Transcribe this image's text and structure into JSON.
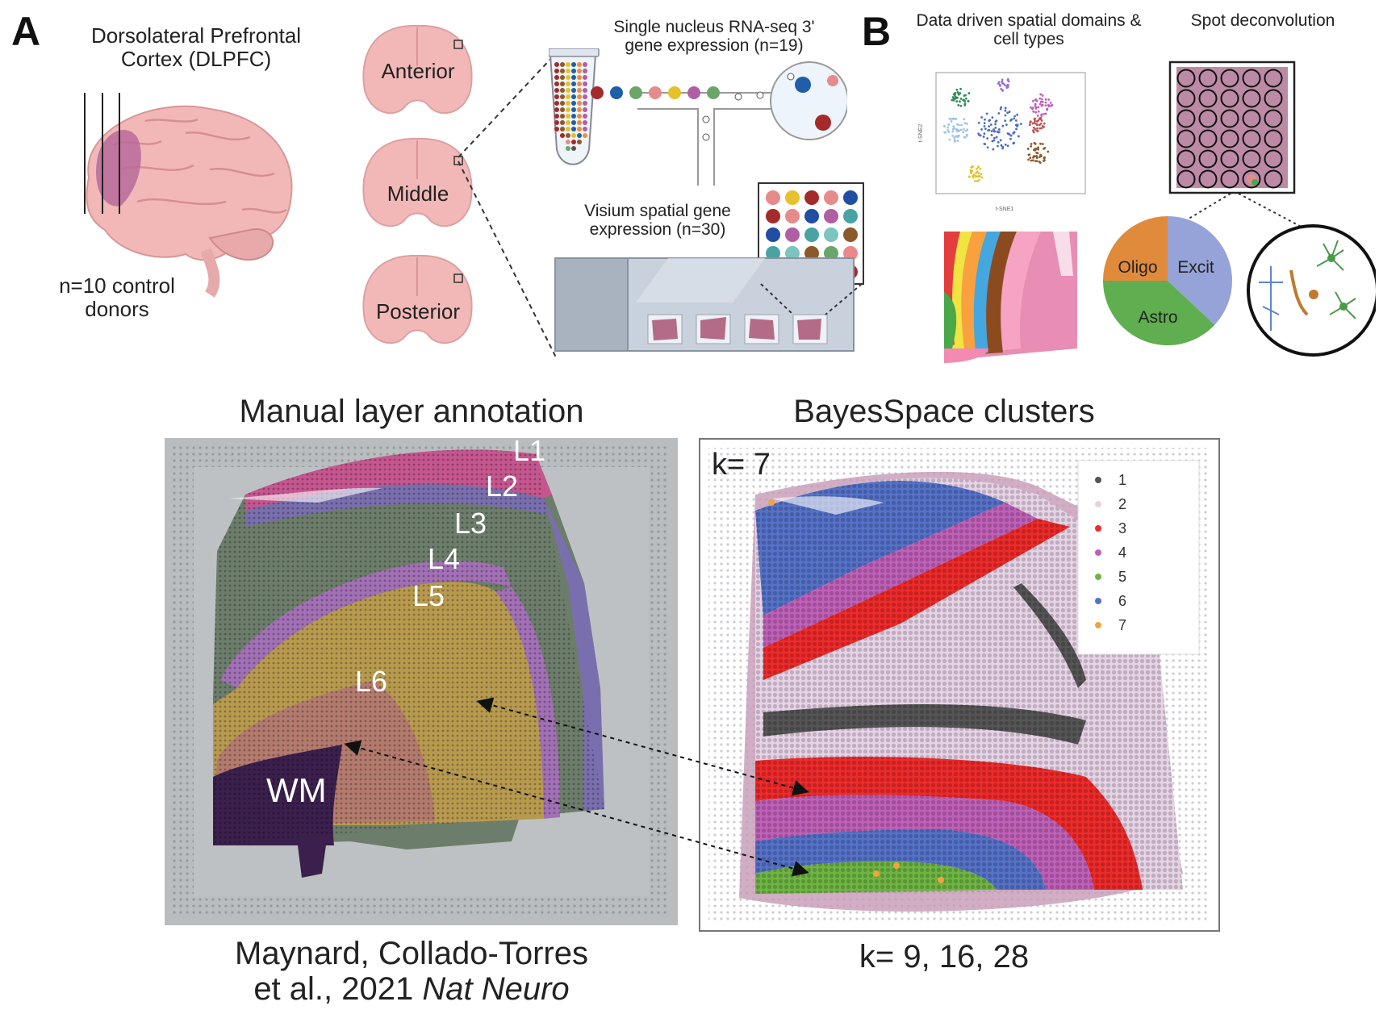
{
  "panel_a": {
    "letter": "A",
    "dlpfc_title": "Dorsolateral Prefrontal Cortex (DLPFC)",
    "donors": "n=10 control donors",
    "sections": [
      "Anterior",
      "Middle",
      "Posterior"
    ],
    "snrna_title": "Single nucleus RNA-seq 3' gene expression (n=19)",
    "visium_title": "Visium spatial gene expression (n=30)"
  },
  "panel_b": {
    "letter": "B",
    "domains_title": "Data driven spatial domains & cell types",
    "deconv_title": "Spot deconvolution",
    "pie_labels": [
      "Oligo",
      "Excit",
      "Astro"
    ],
    "tsne_xlabel": "t-SNE1",
    "tsne_ylabel": "t-SNE2"
  },
  "manual": {
    "title": "Manual layer annotation",
    "layers": [
      "L1",
      "L2",
      "L3",
      "L4",
      "L5",
      "L6",
      "WM"
    ],
    "citation_line1": "Maynard, Collado-Torres",
    "citation_line2_plain": "et al., 2021 ",
    "citation_line2_italic": "Nat Neuro"
  },
  "bayes": {
    "title": "BayesSpace clusters",
    "k_label": "k= 7",
    "k_footer": "k= 9, 16, 28",
    "legend": [
      {
        "label": "1",
        "color": "#555555"
      },
      {
        "label": "2",
        "color": "#e6d3e6"
      },
      {
        "label": "3",
        "color": "#ee2a2a"
      },
      {
        "label": "4",
        "color": "#c060b8"
      },
      {
        "label": "5",
        "color": "#6fb543"
      },
      {
        "label": "6",
        "color": "#5572c8"
      },
      {
        "label": "7",
        "color": "#f2a43a"
      }
    ]
  },
  "colors": {
    "brain_pink": "#f2b8b8",
    "brain_dlpfc": "#b86a9a",
    "layer_l1": "#c5568f",
    "layer_l2": "#7a6fae",
    "layer_l3": "#6d7d6b",
    "layer_l4": "#a270b5",
    "layer_l5": "#b89a4f",
    "layer_l6": "#b37a6e",
    "layer_wm": "#3b1f4c"
  }
}
